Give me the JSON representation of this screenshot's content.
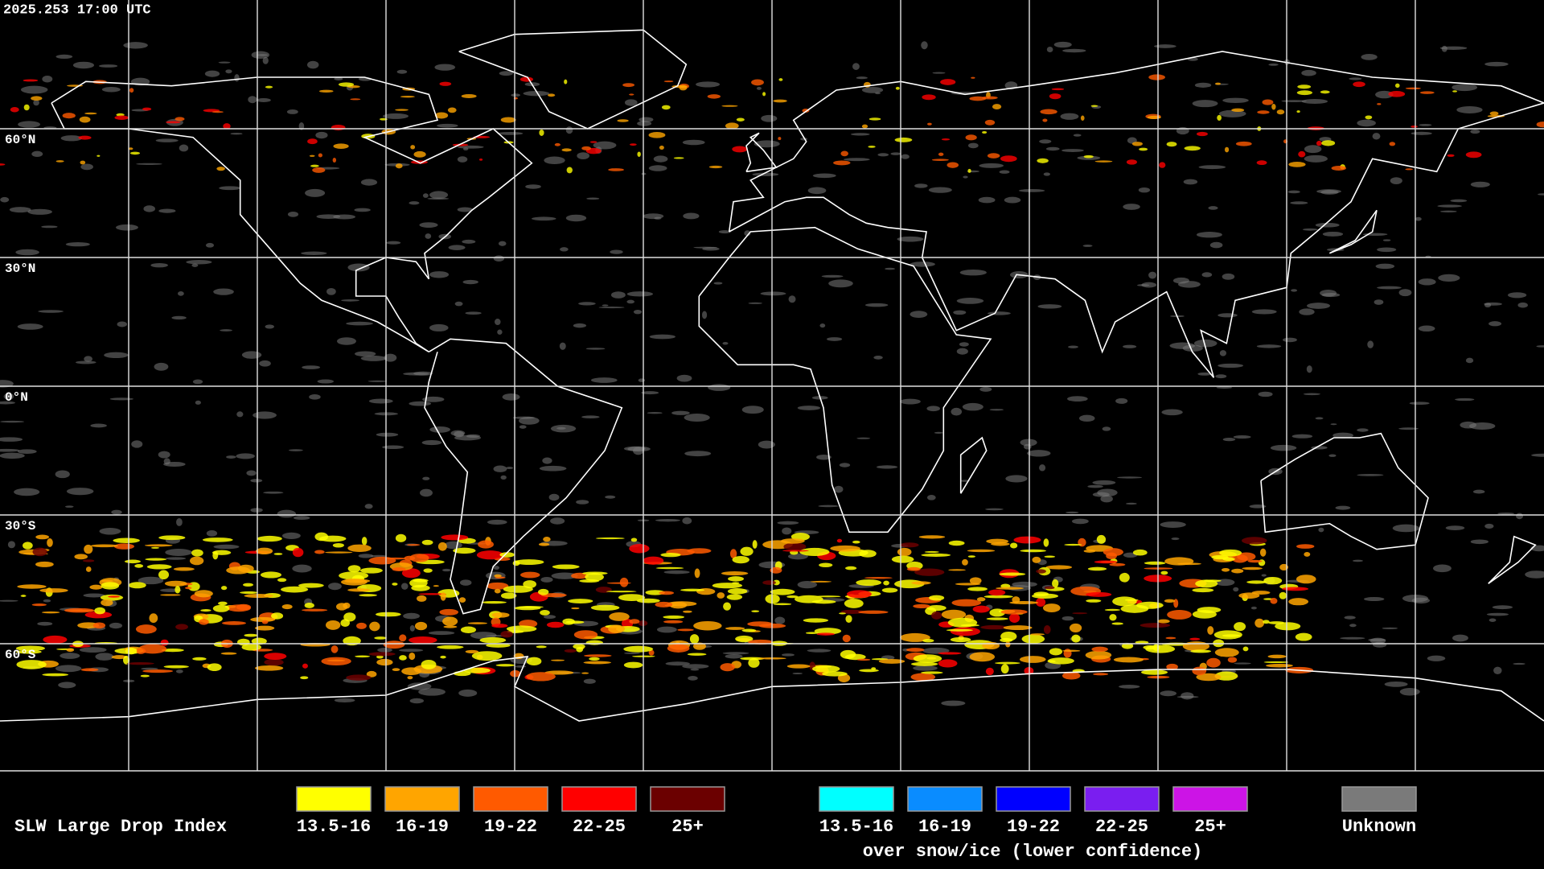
{
  "header": {
    "timestamp": "2025.253 17:00 UTC"
  },
  "lat_labels": [
    "60°N",
    "30°N",
    "0°N",
    "30°S",
    "60°S"
  ],
  "legend": {
    "title": "SLW Large Drop Index",
    "items": [
      {
        "label": "13.5-16",
        "color": "#ffff00"
      },
      {
        "label": "16-19",
        "color": "#ffa500"
      },
      {
        "label": "19-22",
        "color": "#ff5a00"
      },
      {
        "label": "22-25",
        "color": "#ff0000"
      },
      {
        "label": "25+",
        "color": "#6b0000"
      }
    ],
    "ice_items": [
      {
        "label": "13.5-16",
        "color": "#00ffff"
      },
      {
        "label": "16-19",
        "color": "#0a8cff"
      },
      {
        "label": "19-22",
        "color": "#0000ff"
      },
      {
        "label": "22-25",
        "color": "#7a1ef0"
      },
      {
        "label": "25+",
        "color": "#cc14e6"
      }
    ],
    "ice_note": "over snow/ice (lower confidence)",
    "unknown": {
      "label": "Unknown",
      "color": "#7a7a7a"
    }
  }
}
